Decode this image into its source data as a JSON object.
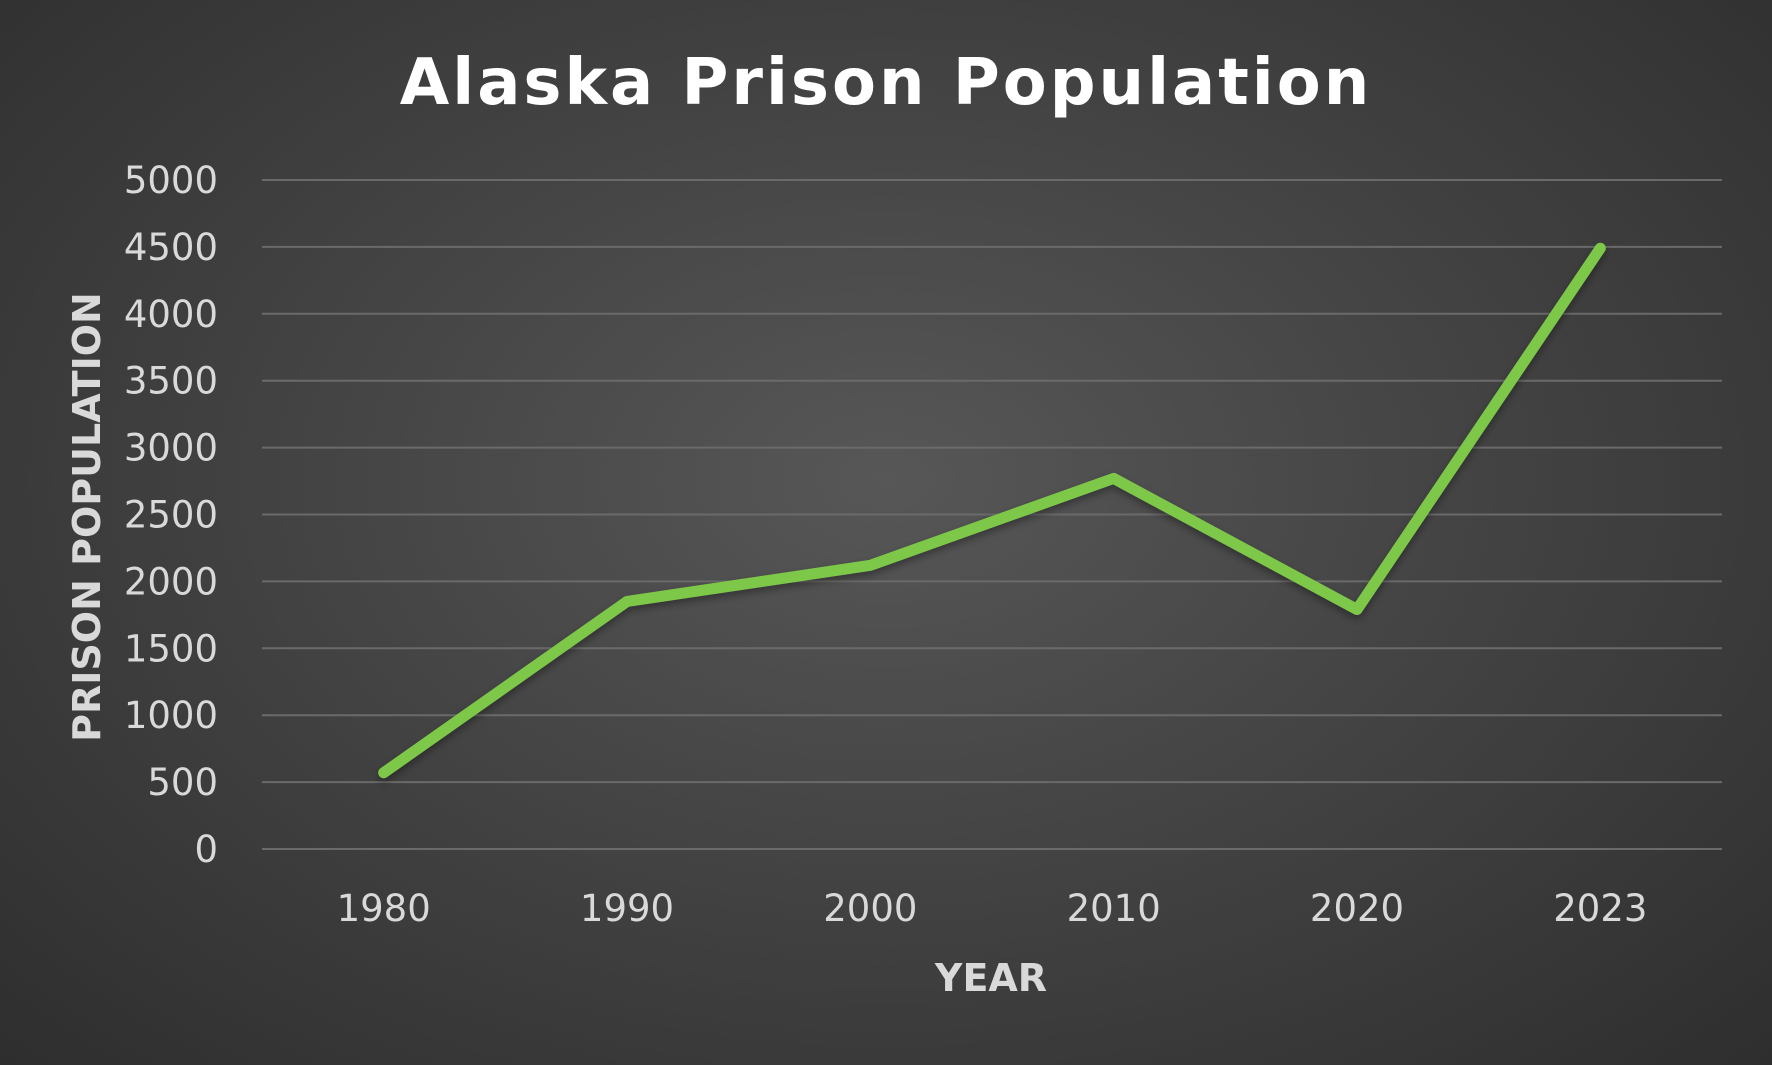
{
  "chart_data": {
    "type": "line",
    "title": "Alaska Prison Population",
    "xlabel": "YEAR",
    "ylabel": "PRISON POPULATION",
    "categories": [
      "1980",
      "1990",
      "2000",
      "2010",
      "2020",
      "2023"
    ],
    "series": [
      {
        "values": [
          570,
          1850,
          2120,
          2770,
          1790,
          4490
        ]
      }
    ],
    "ylim": [
      0,
      5000
    ],
    "yticks": [
      0,
      500,
      1000,
      1500,
      2000,
      2500,
      3000,
      3500,
      4000,
      4500,
      5000
    ],
    "grid": true,
    "legend": "none",
    "line_color": "#7ec84a"
  }
}
